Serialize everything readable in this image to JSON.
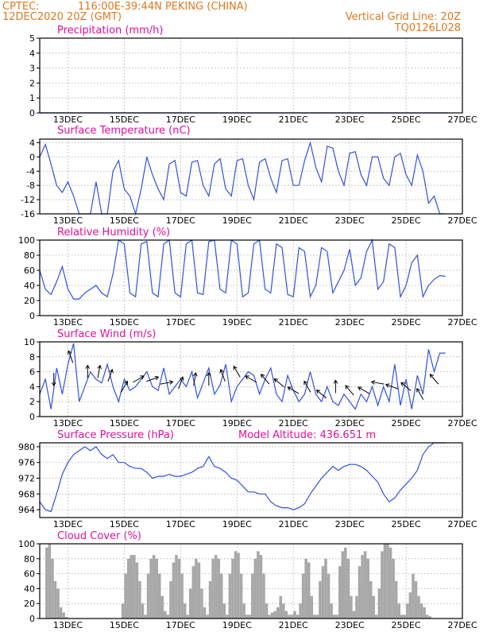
{
  "header": {
    "source": "CPTEC:",
    "location": "116:00E-39:44N   PEKING (CHINA)",
    "datetime": "12DEC2020 20Z (GMT)",
    "grid_note": "Vertical Grid Line: 20Z",
    "model": "TQ0126L028"
  },
  "colors": {
    "line": "#2f52e0",
    "bar": "#a8a8a8",
    "arrow": "#000000",
    "header": "#e07820",
    "title": "#e0109a"
  },
  "date_labels": [
    "13DEC",
    "15DEC",
    "17DEC",
    "19DEC",
    "21DEC",
    "23DEC",
    "25DEC",
    "27DEC"
  ],
  "chart_data": [
    {
      "type": "line",
      "title": "Precipitation (mm/h)",
      "ylim": [
        0,
        5
      ],
      "yticks": [
        0,
        1,
        2,
        3,
        4,
        5
      ],
      "series": [
        {
          "x": [
            0,
            14.5
          ],
          "values": [
            0,
            0
          ]
        }
      ]
    },
    {
      "type": "line",
      "title": "Surface Temperature (nC)",
      "ylim": [
        -16,
        5
      ],
      "yticks": [
        -16,
        -12,
        -8,
        -4,
        0,
        4
      ],
      "series": [
        {
          "x": [
            0,
            0.2,
            0.4,
            0.6,
            0.8,
            1.0,
            1.2,
            1.4,
            1.6,
            1.8,
            2.0,
            2.2,
            2.4,
            2.6,
            2.8,
            3.0,
            3.2,
            3.4,
            3.6,
            3.8,
            4.0,
            4.2,
            4.4,
            4.6,
            4.8,
            5.0,
            5.2,
            5.4,
            5.6,
            5.8,
            6.0,
            6.2,
            6.4,
            6.6,
            6.8,
            7.0,
            7.2,
            7.4,
            7.6,
            7.8,
            8.0,
            8.2,
            8.4,
            8.6,
            8.8,
            9.0,
            9.2,
            9.4,
            9.6,
            9.8,
            10.0,
            10.2,
            10.4,
            10.6,
            10.8,
            11.0,
            11.2,
            11.4,
            11.6,
            11.8,
            12.0,
            12.2,
            12.4,
            12.6,
            12.8,
            13.0,
            13.2,
            13.4,
            13.6,
            13.8,
            14.0,
            14.2,
            14.4
          ],
          "values": [
            0,
            3.5,
            -2,
            -8,
            -10,
            -7,
            -11,
            -16,
            -16,
            -16,
            -7,
            -16,
            -16,
            -4,
            -1,
            -9,
            -11,
            -16,
            -9,
            0,
            -5,
            -9,
            -12,
            -2,
            -1,
            -10,
            -11,
            -1.5,
            -1,
            -8,
            -11,
            -2,
            -0.5,
            -9,
            -11,
            -1,
            -0.5,
            -8,
            -12,
            -1.5,
            -0.5,
            -6,
            -10,
            -1,
            -0.5,
            -8,
            -8,
            -1,
            4,
            -3,
            -7,
            3,
            2.5,
            -4,
            -8,
            1,
            1.5,
            -5,
            -8,
            0,
            0,
            -6,
            -8,
            0,
            1,
            -5,
            -8,
            0.5,
            -4,
            -13,
            -11,
            -16,
            -16
          ]
        }
      ]
    },
    {
      "type": "line",
      "title": "Relative Humidity (%)",
      "ylim": [
        0,
        100
      ],
      "yticks": [
        0,
        20,
        40,
        60,
        80,
        100
      ],
      "series": [
        {
          "x": [
            0,
            0.2,
            0.4,
            0.6,
            0.8,
            1.0,
            1.2,
            1.4,
            1.6,
            1.8,
            2.0,
            2.2,
            2.4,
            2.6,
            2.8,
            3.0,
            3.2,
            3.4,
            3.6,
            3.8,
            4.0,
            4.2,
            4.4,
            4.6,
            4.8,
            5.0,
            5.2,
            5.4,
            5.6,
            5.8,
            6.0,
            6.2,
            6.4,
            6.6,
            6.8,
            7.0,
            7.2,
            7.4,
            7.6,
            7.8,
            8.0,
            8.2,
            8.4,
            8.6,
            8.8,
            9.0,
            9.2,
            9.4,
            9.6,
            9.8,
            10.0,
            10.2,
            10.4,
            10.6,
            10.8,
            11.0,
            11.2,
            11.4,
            11.6,
            11.8,
            12.0,
            12.2,
            12.4,
            12.6,
            12.8,
            13.0,
            13.2,
            13.4,
            13.6,
            13.8,
            14.0,
            14.2,
            14.4
          ],
          "values": [
            60,
            35,
            28,
            45,
            65,
            35,
            22,
            22,
            30,
            35,
            40,
            30,
            25,
            55,
            100,
            95,
            30,
            25,
            95,
            98,
            30,
            25,
            95,
            100,
            30,
            25,
            95,
            100,
            30,
            28,
            98,
            100,
            35,
            30,
            100,
            95,
            25,
            30,
            95,
            100,
            35,
            30,
            95,
            90,
            28,
            25,
            90,
            85,
            25,
            40,
            90,
            85,
            30,
            45,
            60,
            88,
            40,
            50,
            85,
            100,
            35,
            45,
            95,
            90,
            25,
            40,
            70,
            80,
            25,
            40,
            48,
            53,
            52
          ]
        }
      ]
    },
    {
      "type": "line",
      "title": "Surface Wind (m/s)",
      "ylim": [
        0,
        10
      ],
      "yticks": [
        0,
        2,
        4,
        6,
        8,
        10
      ],
      "series": [
        {
          "x": [
            0,
            0.2,
            0.4,
            0.6,
            0.8,
            1.0,
            1.2,
            1.4,
            1.6,
            1.8,
            2.0,
            2.2,
            2.4,
            2.6,
            2.8,
            3.0,
            3.2,
            3.4,
            3.6,
            3.8,
            4.0,
            4.2,
            4.4,
            4.6,
            4.8,
            5.0,
            5.2,
            5.4,
            5.6,
            5.8,
            6.0,
            6.2,
            6.4,
            6.6,
            6.8,
            7.0,
            7.2,
            7.4,
            7.6,
            7.8,
            8.0,
            8.2,
            8.4,
            8.6,
            8.8,
            9.0,
            9.2,
            9.4,
            9.6,
            9.8,
            10.0,
            10.2,
            10.4,
            10.6,
            10.8,
            11.0,
            11.2,
            11.4,
            11.6,
            11.8,
            12.0,
            12.2,
            12.4,
            12.6,
            12.8,
            13.0,
            13.2,
            13.4,
            13.6,
            13.8,
            14.0,
            14.2,
            14.4
          ],
          "values": [
            3,
            5,
            1,
            6.5,
            3,
            7,
            9.8,
            2,
            4,
            6,
            5,
            4.5,
            7,
            4,
            2,
            5,
            3.5,
            4,
            5,
            6,
            4,
            3.5,
            6.5,
            3,
            4,
            5,
            4,
            6,
            2.5,
            4.5,
            6.5,
            3,
            4.2,
            7,
            2,
            4,
            5,
            6,
            5.5,
            3,
            5,
            6.5,
            3,
            2,
            5.5,
            3.5,
            2,
            3,
            6,
            3,
            2,
            4,
            2,
            1.5,
            3,
            2,
            1,
            3,
            2,
            4,
            1.5,
            4,
            2,
            7,
            1.5,
            5,
            1,
            5.5,
            3,
            9,
            6,
            8.5,
            8.5
          ]
        }
      ],
      "arrows": {
        "x": [
          0.5,
          1.1,
          1.7,
          2.1,
          2.5,
          3.0,
          3.5,
          4.0,
          4.5,
          5.0,
          5.5,
          6.0,
          6.5,
          7.0,
          7.5,
          8.0,
          8.5,
          9.0,
          9.5,
          10.0,
          10.5,
          11.0,
          11.5,
          12.0,
          12.5,
          13.0,
          13.5,
          14.0
        ],
        "direction_deg": [
          180,
          340,
          0,
          10,
          20,
          30,
          60,
          70,
          80,
          20,
          10,
          0,
          340,
          330,
          300,
          320,
          310,
          300,
          330,
          310,
          0,
          320,
          300,
          280,
          290,
          310,
          330,
          320
        ],
        "speed_mps": [
          5,
          8,
          6,
          6,
          5.5,
          4,
          5,
          5,
          4.5,
          4.5,
          5,
          5,
          5.5,
          6,
          5,
          5,
          4.5,
          3.5,
          4,
          3,
          4,
          3.5,
          3.5,
          4.5,
          4,
          4,
          3,
          5
        ]
      }
    },
    {
      "type": "line",
      "title": "Surface Pressure (hPa)",
      "ylim": [
        962,
        981
      ],
      "yticks": [
        964,
        968,
        972,
        976,
        980
      ],
      "annotation": "Model Altitude: 436.651 m",
      "series": [
        {
          "x": [
            0,
            0.2,
            0.4,
            0.6,
            0.8,
            1.0,
            1.2,
            1.4,
            1.6,
            1.8,
            2.0,
            2.2,
            2.4,
            2.6,
            2.8,
            3.0,
            3.2,
            3.4,
            3.6,
            3.8,
            4.0,
            4.2,
            4.4,
            4.6,
            4.8,
            5.0,
            5.2,
            5.4,
            5.6,
            5.8,
            6.0,
            6.2,
            6.4,
            6.6,
            6.8,
            7.0,
            7.2,
            7.4,
            7.6,
            7.8,
            8.0,
            8.2,
            8.4,
            8.6,
            8.8,
            9.0,
            9.2,
            9.4,
            9.6,
            9.8,
            10.0,
            10.2,
            10.4,
            10.6,
            10.8,
            11.0,
            11.2,
            11.4,
            11.6,
            11.8,
            12.0,
            12.2,
            12.4,
            12.6,
            12.8,
            13.0,
            13.2,
            13.4,
            13.6,
            13.8,
            14.0,
            14.2,
            14.4
          ],
          "values": [
            966,
            964,
            963.5,
            968,
            973,
            976,
            978,
            979,
            980,
            979,
            980,
            978,
            977,
            978,
            976,
            976,
            975,
            974.5,
            974.5,
            973.5,
            972,
            972.5,
            972.5,
            973,
            972.5,
            972.5,
            973,
            973.5,
            974.5,
            975,
            977.5,
            975,
            974.5,
            973.5,
            972,
            971.5,
            970,
            968.5,
            968.5,
            968,
            968,
            966,
            965,
            964.5,
            964.5,
            964,
            964.5,
            965.5,
            968,
            970,
            972,
            973.5,
            975,
            974,
            975,
            975.5,
            975.5,
            975,
            974,
            972.5,
            971,
            968,
            966,
            967,
            969,
            970.5,
            972,
            974,
            978,
            980,
            981,
            981,
            981
          ]
        }
      ]
    },
    {
      "type": "bar",
      "title": "Cloud Cover (%)",
      "ylim": [
        0,
        100
      ],
      "yticks": [
        0,
        20,
        40,
        60,
        80,
        100
      ],
      "x": [
        0.25,
        0.35,
        0.45,
        0.55,
        0.65,
        0.75,
        0.85,
        0.95,
        2.95,
        3.05,
        3.15,
        3.25,
        3.35,
        3.45,
        3.55,
        3.65,
        3.75,
        3.85,
        3.95,
        4.05,
        4.15,
        4.25,
        4.35,
        4.45,
        4.55,
        4.65,
        4.75,
        4.85,
        4.95,
        5.05,
        5.15,
        5.25,
        5.35,
        5.45,
        5.55,
        5.65,
        5.75,
        5.85,
        5.95,
        6.05,
        6.15,
        6.25,
        6.35,
        6.45,
        6.55,
        6.65,
        6.75,
        6.85,
        6.95,
        7.05,
        7.15,
        7.25,
        7.35,
        7.45,
        7.55,
        7.65,
        7.75,
        7.85,
        7.95,
        8.05,
        8.15,
        8.25,
        8.35,
        8.45,
        8.55,
        8.65,
        8.75,
        8.85,
        8.95,
        9.05,
        9.15,
        9.25,
        9.35,
        9.45,
        9.55,
        9.65,
        9.75,
        9.85,
        9.95,
        10.05,
        10.15,
        10.25,
        10.35,
        10.45,
        10.55,
        10.65,
        10.75,
        10.85,
        10.95,
        11.05,
        11.15,
        11.25,
        11.35,
        11.45,
        11.55,
        11.65,
        11.75,
        11.85,
        11.95,
        12.05,
        12.15,
        12.25,
        12.35,
        12.45,
        12.55,
        12.65,
        12.75,
        12.85,
        12.95,
        13.05,
        13.15,
        13.25,
        13.35,
        13.45,
        13.55,
        13.65,
        13.75,
        13.85,
        13.95,
        14.05,
        14.15,
        14.25,
        14.35
      ],
      "values": [
        95,
        100,
        80,
        50,
        40,
        15,
        8,
        2,
        20,
        60,
        80,
        85,
        85,
        75,
        50,
        20,
        5,
        60,
        80,
        85,
        80,
        60,
        30,
        10,
        5,
        50,
        75,
        85,
        80,
        60,
        20,
        5,
        40,
        70,
        80,
        75,
        40,
        15,
        5,
        50,
        80,
        85,
        80,
        60,
        20,
        5,
        60,
        80,
        90,
        88,
        60,
        20,
        5,
        5,
        60,
        80,
        90,
        85,
        60,
        20,
        5,
        8,
        10,
        15,
        30,
        20,
        10,
        5,
        5,
        10,
        5,
        20,
        60,
        80,
        75,
        30,
        5,
        5,
        50,
        70,
        80,
        60,
        20,
        5,
        5,
        70,
        90,
        95,
        80,
        30,
        10,
        30,
        70,
        85,
        90,
        80,
        50,
        30,
        5,
        40,
        90,
        100,
        100,
        95,
        80,
        50,
        20,
        5,
        5,
        20,
        35,
        60,
        50,
        30,
        20,
        15,
        5,
        3,
        0,
        0,
        0,
        0,
        0
      ]
    }
  ]
}
